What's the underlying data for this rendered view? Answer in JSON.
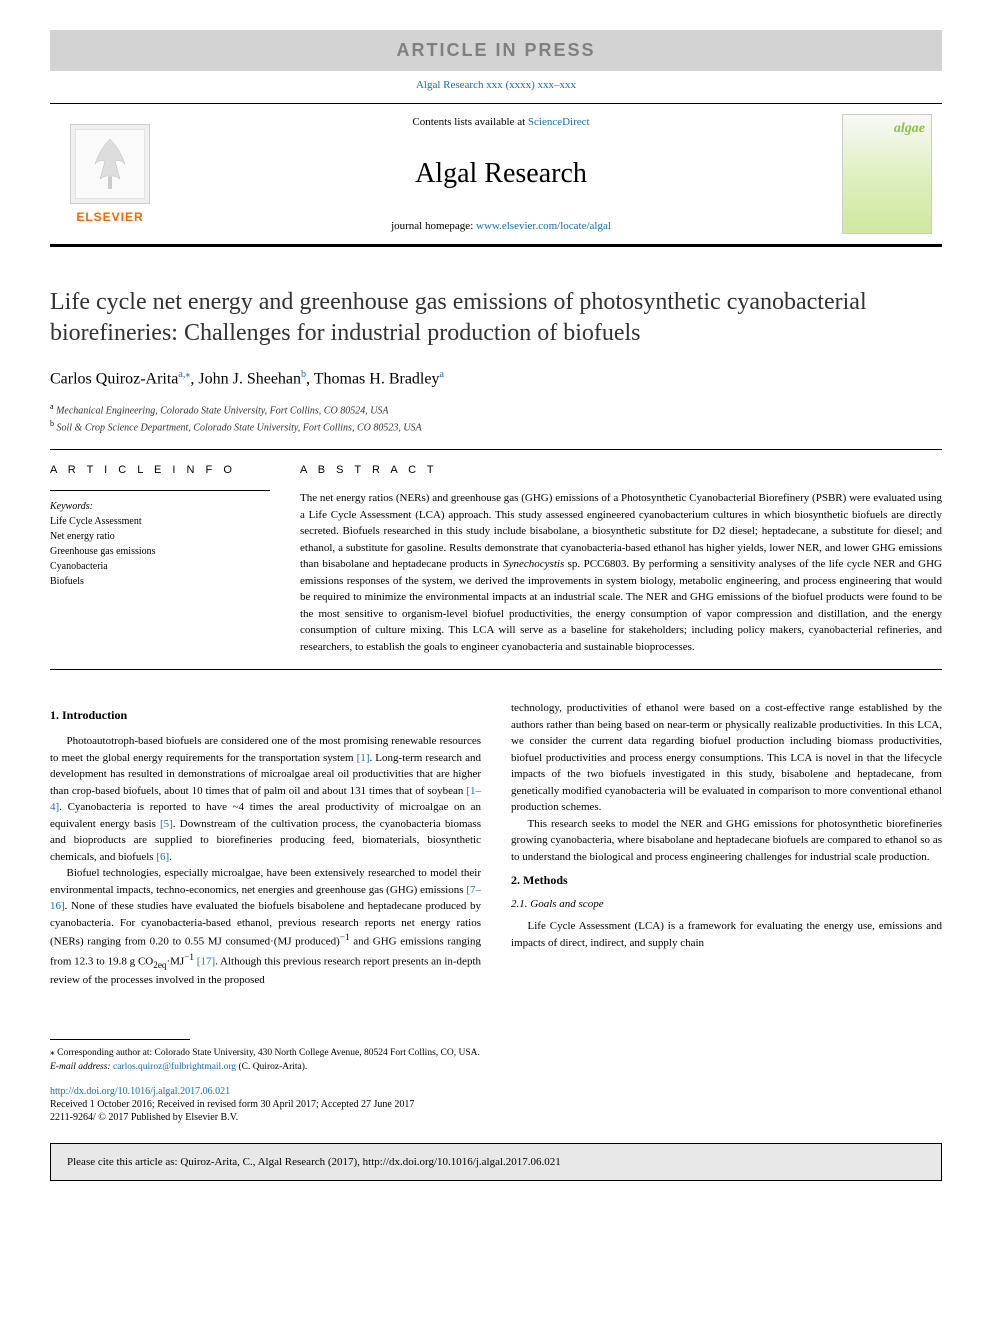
{
  "banner": {
    "text": "ARTICLE IN PRESS",
    "bg_color": "#d3d3d3",
    "text_color": "#808080",
    "fontsize": 18
  },
  "journal_ref": "Algal Research xxx (xxxx) xxx–xxx",
  "header": {
    "elsevier_label": "ELSEVIER",
    "elsevier_color": "#ff6600",
    "contents_prefix": "Contents lists available at ",
    "contents_link_text": "ScienceDirect",
    "journal_title": "Algal Research",
    "homepage_prefix": "journal homepage: ",
    "homepage_link": "www.elsevier.com/locate/algal",
    "cover_label": "algae"
  },
  "article": {
    "title": "Life cycle net energy and greenhouse gas emissions of photosynthetic cyanobacterial biorefineries: Challenges for industrial production of biofuels",
    "title_fontsize": 24,
    "authors_html": "Carlos Quiroz-Arita",
    "author1_sup": "a,⁎",
    "author2": ", John J. Sheehan",
    "author2_sup": "b",
    "author3": ", Thomas H. Bradley",
    "author3_sup": "a",
    "affiliations": [
      {
        "sup": "a",
        "text": " Mechanical Engineering, Colorado State University, Fort Collins, CO 80524, USA"
      },
      {
        "sup": "b",
        "text": " Soil & Crop Science Department, Colorado State University, Fort Collins, CO 80523, USA"
      }
    ]
  },
  "article_info": {
    "label": "A R T I C L E  I N F O",
    "keywords_label": "Keywords:",
    "keywords": [
      "Life Cycle Assessment",
      "Net energy ratio",
      "Greenhouse gas emissions",
      "Cyanobacteria",
      "Biofuels"
    ]
  },
  "abstract": {
    "label": "A B S T R A C T",
    "text": "The net energy ratios (NERs) and greenhouse gas (GHG) emissions of a Photosynthetic Cyanobacterial Biorefinery (PSBR) were evaluated using a Life Cycle Assessment (LCA) approach. This study assessed engineered cyanobacterium cultures in which biosynthetic biofuels are directly secreted. Biofuels researched in this study include bisabolane, a biosynthetic substitute for D2 diesel; heptadecane, a substitute for diesel; and ethanol, a substitute for gasoline. Results demonstrate that cyanobacteria-based ethanol has higher yields, lower NER, and lower GHG emissions than bisabolane and heptadecane products in Synechocystis sp. PCC6803. By performing a sensitivity analyses of the life cycle NER and GHG emissions responses of the system, we derived the improvements in system biology, metabolic engineering, and process engineering that would be required to minimize the environmental impacts at an industrial scale. The NER and GHG emissions of the biofuel products were found to be the most sensitive to organism-level biofuel productivities, the energy consumption of vapor compression and distillation, and the energy consumption of culture mixing. This LCA will serve as a baseline for stakeholders; including policy makers, cyanobacterial refineries, and researchers, to establish the goals to engineer cyanobacteria and sustainable bioprocesses."
  },
  "body": {
    "section1_title": "1. Introduction",
    "p1": "Photoautotroph-based biofuels are considered one of the most promising renewable resources to meet the global energy requirements for the transportation system [1]. Long-term research and development has resulted in demonstrations of microalgae areal oil productivities that are higher than crop-based biofuels, about 10 times that of palm oil and about 131 times that of soybean [1–4]. Cyanobacteria is reported to have ~4 times the areal productivity of microalgae on an equivalent energy basis [5]. Downstream of the cultivation process, the cyanobacteria biomass and bioproducts are supplied to biorefineries producing feed, biomaterials, biosynthetic chemicals, and biofuels [6].",
    "p2": "Biofuel technologies, especially microalgae, have been extensively researched to model their environmental impacts, techno-economics, net energies and greenhouse gas (GHG) emissions [7–16]. None of these studies have evaluated the biofuels bisabolene and heptadecane produced by cyanobacteria. For cyanobacteria-based ethanol, previous research reports net energy ratios (NERs) ranging from 0.20 to 0.55 MJ consumed·(MJ produced)⁻¹ and GHG emissions ranging from 12.3 to 19.8 g CO₂eq·MJ⁻¹ [17]. Although this previous research report presents an in-depth review of the processes involved in the proposed",
    "p3": "technology, productivities of ethanol were based on a cost-effective range established by the authors rather than being based on near-term or physically realizable productivities. In this LCA, we consider the current data regarding biofuel production including biomass productivities, biofuel productivities and process energy consumptions. This LCA is novel in that the lifecycle impacts of the two biofuels investigated in this study, bisabolene and heptadecane, from genetically modified cyanobacteria will be evaluated in comparison to more conventional ethanol production schemes.",
    "p4": "This research seeks to model the NER and GHG emissions for photosynthetic biorefineries growing cyanobacteria, where bisabolane and heptadecane biofuels are compared to ethanol so as to understand the biological and process engineering challenges for industrial scale production.",
    "section2_title": "2. Methods",
    "section2_1_title": "2.1. Goals and scope",
    "p5": "Life Cycle Assessment (LCA) is a framework for evaluating the energy use, emissions and impacts of direct, indirect, and supply chain"
  },
  "footer": {
    "corr_author": "⁎ Corresponding author at: Colorado State University, 430 North College Avenue, 80524 Fort Collins, CO, USA.",
    "email_label": "E-mail address: ",
    "email": "carlos.quiroz@fulbrightmail.org",
    "email_suffix": " (C. Quiroz-Arita).",
    "doi": "http://dx.doi.org/10.1016/j.algal.2017.06.021",
    "dates": "Received 1 October 2016; Received in revised form 30 April 2017; Accepted 27 June 2017",
    "copyright": "2211-9264/ © 2017 Published by Elsevier B.V."
  },
  "cite_box": "Please cite this article as: Quiroz-Arita, C., Algal Research (2017), http://dx.doi.org/10.1016/j.algal.2017.06.021",
  "colors": {
    "link": "#1a6bb8",
    "elsevier_orange": "#ff6600",
    "banner_bg": "#d3d3d3",
    "cite_bg": "#e8e8e8",
    "algae_green": "#8bc34a"
  }
}
